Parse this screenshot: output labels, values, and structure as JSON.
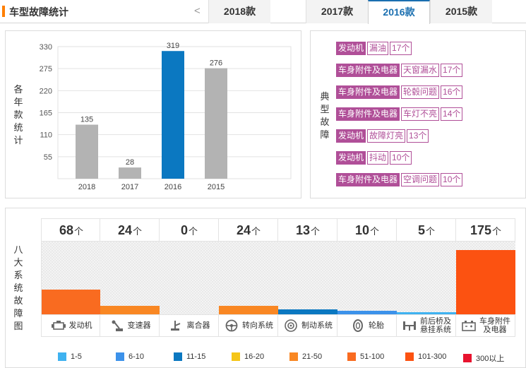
{
  "header": {
    "title": "车型故障统计",
    "prev_arrow": "<",
    "tabs": [
      {
        "label": "2018款",
        "active": false
      },
      {
        "label": "2017款",
        "active": false
      },
      {
        "label": "2016款",
        "active": true
      },
      {
        "label": "2015款",
        "active": false
      }
    ]
  },
  "chart_panel": {
    "ylabel_chars": [
      "各",
      "年",
      "款",
      "统",
      "计"
    ],
    "chart_data": {
      "type": "bar",
      "categories": [
        "2018",
        "2017",
        "2016",
        "2015"
      ],
      "values": [
        135,
        28,
        319,
        276
      ],
      "highlight": "2016",
      "colors": {
        "default": "#b3b3b3",
        "highlight": "#0b78c1"
      },
      "yticks": [
        55,
        110,
        165,
        220,
        275,
        330
      ],
      "ylim": [
        0,
        330
      ],
      "grid": true
    }
  },
  "faults_panel": {
    "label_chars": [
      "典",
      "型",
      "故",
      "障"
    ],
    "items": [
      {
        "system": "发动机",
        "issue": "漏油",
        "count": "17个"
      },
      {
        "system": "车身附件及电器",
        "issue": "天窗漏水",
        "count": "17个"
      },
      {
        "system": "车身附件及电器",
        "issue": "轮毂问题",
        "count": "16个"
      },
      {
        "system": "车身附件及电器",
        "issue": "车灯不亮",
        "count": "14个"
      },
      {
        "system": "发动机",
        "issue": "故障灯亮",
        "count": "13个"
      },
      {
        "system": "发动机",
        "issue": "抖动",
        "count": "10个"
      },
      {
        "system": "车身附件及电器",
        "issue": "空调问题",
        "count": "10个"
      }
    ]
  },
  "systems_panel": {
    "label_chars": [
      "八",
      "大",
      "系",
      "统",
      "故",
      "障",
      "图"
    ],
    "unit": "个",
    "max_value": 175,
    "systems": [
      {
        "name": "发动机",
        "count": "68",
        "value": 68,
        "color": "#f96b20",
        "icon": "engine-icon"
      },
      {
        "name": "变速器",
        "count": "24",
        "value": 24,
        "color": "#f98723",
        "icon": "gear-shift-icon"
      },
      {
        "name": "离合器",
        "count": "0",
        "value": 0,
        "color": "#f98723",
        "icon": "clutch-icon"
      },
      {
        "name": "转向系统",
        "count": "24",
        "value": 24,
        "color": "#f98723",
        "icon": "steering-wheel-icon"
      },
      {
        "name": "制动系统",
        "count": "13",
        "value": 13,
        "color": "#0b78c1",
        "icon": "brake-disc-icon"
      },
      {
        "name": "轮胎",
        "count": "10",
        "value": 10,
        "color": "#3c92ea",
        "icon": "tire-icon"
      },
      {
        "name": "前后桥及\n悬挂系统",
        "count": "5",
        "value": 5,
        "color": "#3fb2f0",
        "icon": "suspension-icon"
      },
      {
        "name": "车身附件\n及电器",
        "count": "175",
        "value": 175,
        "color": "#fc5211",
        "icon": "car-battery-icon"
      }
    ],
    "legend": [
      {
        "label": "1-5",
        "color": "#3fb2f0"
      },
      {
        "label": "6-10",
        "color": "#3c92ea"
      },
      {
        "label": "11-15",
        "color": "#0b78c1"
      },
      {
        "label": "16-20",
        "color": "#f5c518"
      },
      {
        "label": "21-50",
        "color": "#f98723"
      },
      {
        "label": "51-100",
        "color": "#f96b20"
      },
      {
        "label": "101-300",
        "color": "#fc5211"
      },
      {
        "label": "300以上",
        "color": "#e8132e"
      }
    ]
  }
}
